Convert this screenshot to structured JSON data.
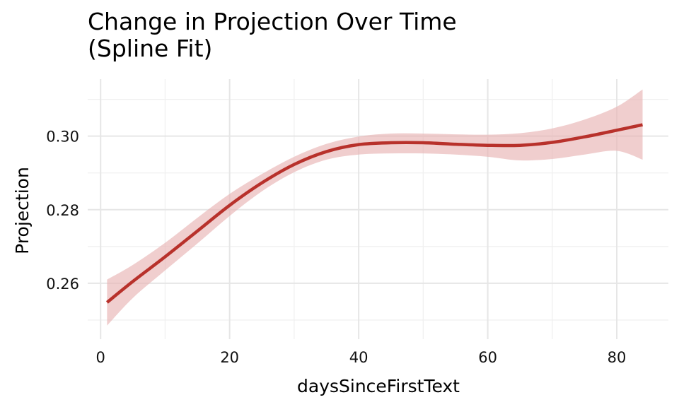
{
  "chart_data": {
    "type": "line",
    "title_line1": "Change in Projection Over Time",
    "title_line2": "(Spline Fit)",
    "xlabel": "daysSinceFirstText",
    "ylabel": "Projection",
    "xlim": [
      -2,
      88
    ],
    "ylim": [
      0.2448,
      0.3155
    ],
    "x_ticks": [
      0,
      20,
      40,
      60,
      80
    ],
    "x_minor_ticks": [
      10,
      30,
      50,
      70
    ],
    "y_ticks": [
      0.26,
      0.28,
      0.3
    ],
    "y_tick_labels": [
      "0.26",
      "0.28",
      "0.30"
    ],
    "y_minor_ticks": [
      0.25,
      0.27,
      0.29,
      0.31
    ],
    "grid": true,
    "legend": "none",
    "colors": {
      "line": "#b8312b",
      "band": "#e8b4b3",
      "grid": "#e6e6e6"
    },
    "series": [
      {
        "x": [
          1,
          5,
          10,
          15,
          20,
          25,
          30,
          35,
          40,
          45,
          50,
          55,
          60,
          65,
          70,
          75,
          80,
          84
        ],
        "y": [
          0.2548,
          0.2605,
          0.2672,
          0.2742,
          0.2812,
          0.2873,
          0.2923,
          0.2958,
          0.2977,
          0.2982,
          0.2982,
          0.2978,
          0.2975,
          0.2975,
          0.2983,
          0.2998,
          0.3016,
          0.3031
        ],
        "ci_lower": [
          0.2485,
          0.256,
          0.2635,
          0.2708,
          0.2783,
          0.285,
          0.2902,
          0.2936,
          0.295,
          0.2953,
          0.2953,
          0.295,
          0.2944,
          0.2934,
          0.2938,
          0.295,
          0.296,
          0.2936
        ],
        "ci_upper": [
          0.261,
          0.265,
          0.271,
          0.2778,
          0.2843,
          0.2897,
          0.2944,
          0.2979,
          0.2999,
          0.3007,
          0.3007,
          0.3005,
          0.3004,
          0.3008,
          0.3021,
          0.3045,
          0.308,
          0.3127
        ]
      }
    ]
  }
}
